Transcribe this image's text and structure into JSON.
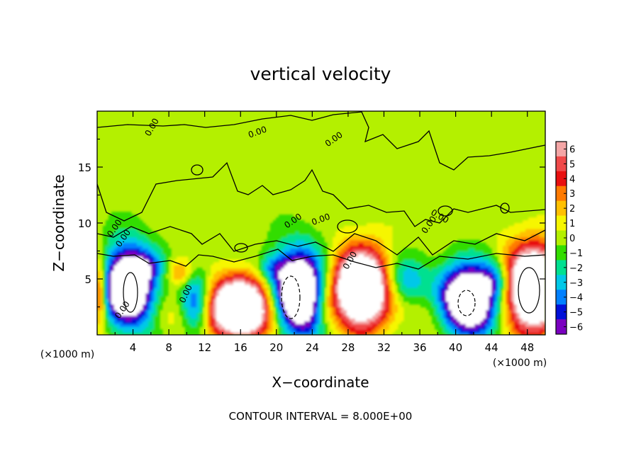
{
  "chart_data": {
    "type": "heatmap",
    "title": "vertical velocity",
    "xlabel": "X−coordinate",
    "ylabel": "Z−coordinate",
    "x_unit_left": "(×1000 m)",
    "x_unit_right": "(×1000 m)",
    "footer": "CONTOUR INTERVAL = 8.000E+00",
    "xlim": [
      0,
      50
    ],
    "ylim": [
      0,
      20
    ],
    "x_ticks": [
      4,
      8,
      12,
      16,
      20,
      24,
      28,
      32,
      36,
      40,
      44,
      48
    ],
    "x_tick_labels": [
      "4",
      "8",
      "12",
      "16",
      "20",
      "24",
      "28",
      "32",
      "36",
      "40",
      "44",
      "48"
    ],
    "y_ticks": [
      5,
      10,
      15
    ],
    "y_tick_labels": [
      "5",
      "10",
      "15"
    ],
    "contour_label": "0.00",
    "colorbar": {
      "values": [
        6,
        5,
        4,
        3,
        2,
        1,
        0,
        -1,
        -2,
        -3,
        -4,
        -5,
        -6
      ],
      "labels": [
        "6",
        "5",
        "4",
        "3",
        "2",
        "1",
        "0",
        "−1",
        "−2",
        "−3",
        "−4",
        "−5",
        "−6"
      ],
      "colors": [
        "#f4a6a6",
        "#f04a4a",
        "#e81010",
        "#ff7a00",
        "#ffc000",
        "#f6f600",
        "#b4f000",
        "#33dd00",
        "#00e090",
        "#00c8e8",
        "#0080ff",
        "#0010d8",
        "#7a00c0"
      ]
    },
    "features": [
      {
        "kind": "updraft",
        "x": 16,
        "z": 2.4,
        "rx": 3.5,
        "rz": 2.6,
        "peak": 14
      },
      {
        "kind": "updraft",
        "x": 29.5,
        "z": 4.2,
        "rx": 3.3,
        "rz": 3.3,
        "peak": 14
      },
      {
        "kind": "updraft",
        "x": 48.8,
        "z": 4.2,
        "rx": 3.4,
        "rz": 3.6,
        "peak": 14
      },
      {
        "kind": "updraft",
        "x": 9.3,
        "z": 5.6,
        "rx": 1.5,
        "rz": 1.2,
        "peak": 3
      },
      {
        "kind": "updraft",
        "x": 0.2,
        "z": 3.8,
        "rx": 0.9,
        "rz": 3,
        "peak": 6
      },
      {
        "kind": "updraft",
        "x": 37.5,
        "z": 2.5,
        "rx": 2.3,
        "rz": 2,
        "peak": 1.5
      },
      {
        "kind": "updraft",
        "x": 25.5,
        "z": 2.2,
        "rx": 1.2,
        "rz": 2,
        "peak": 1.5
      },
      {
        "kind": "updraft",
        "x": 8,
        "z": 1.5,
        "rx": 2,
        "rz": 1.6,
        "peak": 1.2
      },
      {
        "kind": "downdraft",
        "x": 3.5,
        "z": 4.4,
        "rx": 2.8,
        "rz": 3.5,
        "peak": -12
      },
      {
        "kind": "downdraft",
        "x": 22.5,
        "z": 3.8,
        "rx": 3,
        "rz": 3.7,
        "peak": -12
      },
      {
        "kind": "downdraft",
        "x": 41.5,
        "z": 3.2,
        "rx": 3.3,
        "rz": 3,
        "peak": -12
      },
      {
        "kind": "downdraft",
        "x": 11,
        "z": 2.8,
        "rx": 1.6,
        "rz": 3,
        "peak": -5
      },
      {
        "kind": "downdraft",
        "x": 34,
        "z": 4.8,
        "rx": 2.6,
        "rz": 2.2,
        "peak": -4.5
      },
      {
        "kind": "downdraft",
        "x": 44.5,
        "z": 5,
        "rx": 1.6,
        "rz": 1.6,
        "peak": -3.5
      },
      {
        "kind": "downdraft",
        "x": 19.5,
        "z": 6,
        "rx": 1.5,
        "rz": 1.2,
        "peak": -2.5
      },
      {
        "kind": "downdraft",
        "x": 6,
        "z": 6.2,
        "rx": 1.5,
        "rz": 1.2,
        "peak": -2
      }
    ]
  }
}
